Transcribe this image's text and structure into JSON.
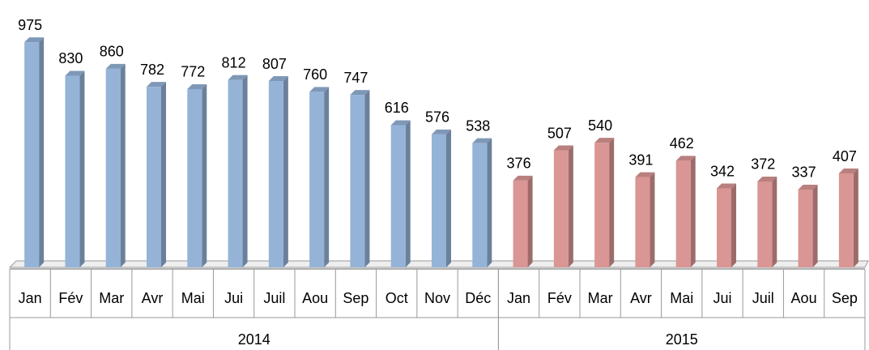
{
  "chart_data": {
    "type": "bar3d",
    "categories": [
      "Jan",
      "Fév",
      "Mar",
      "Avr",
      "Mai",
      "Jui",
      "Juil",
      "Aou",
      "Sep",
      "Oct",
      "Nov",
      "Déc",
      "Jan",
      "Fév",
      "Mar",
      "Avr",
      "Mai",
      "Jui",
      "Juil",
      "Aou",
      "Sep"
    ],
    "series": [
      {
        "name": "2014",
        "color": "#95b3d7",
        "values": [
          975,
          830,
          860,
          782,
          772,
          812,
          807,
          760,
          747,
          616,
          576,
          538,
          null,
          null,
          null,
          null,
          null,
          null,
          null,
          null,
          null
        ]
      },
      {
        "name": "2015",
        "color": "#d99694",
        "values": [
          null,
          null,
          null,
          null,
          null,
          null,
          null,
          null,
          null,
          null,
          null,
          null,
          376,
          507,
          540,
          391,
          462,
          342,
          372,
          337,
          407
        ]
      }
    ]
  }
}
